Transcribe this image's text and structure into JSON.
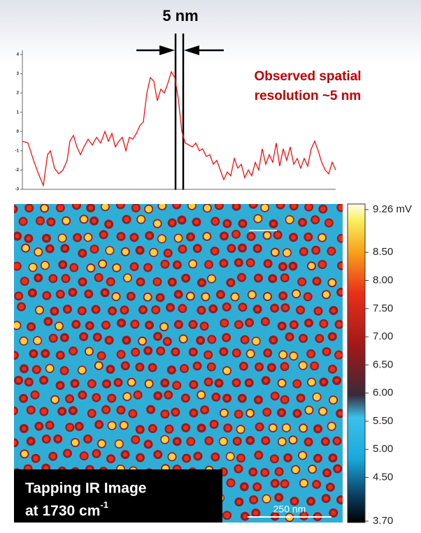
{
  "chart_data": [
    {
      "type": "line",
      "title": "5 nm",
      "annotation": "Observed spatial resolution ~5 nm",
      "color": "#ee1111",
      "x": [
        0,
        8,
        16,
        23,
        30,
        36,
        40,
        46,
        52,
        58,
        64,
        68,
        73,
        78,
        83,
        88,
        94,
        100,
        106,
        112,
        118,
        123,
        128,
        133,
        138,
        143,
        148,
        153,
        158,
        163,
        168,
        173,
        178,
        183,
        188,
        193,
        198,
        203,
        208,
        213,
        218,
        223,
        228,
        233,
        238,
        243,
        248,
        253,
        258,
        263,
        268,
        273,
        278,
        283,
        288,
        293,
        298,
        303,
        308,
        313,
        318,
        323,
        328,
        333,
        338,
        343,
        348,
        353,
        358,
        363,
        368,
        373,
        378,
        383,
        388,
        393,
        398,
        403,
        408,
        413,
        418,
        423,
        428,
        433,
        438,
        443,
        448
      ],
      "values": [
        -0.5,
        -0.6,
        -1.5,
        -2.2,
        -2.8,
        -1.2,
        -1.0,
        -1.9,
        -2.2,
        -2.0,
        -1.5,
        -0.5,
        -0.2,
        -0.8,
        -1.2,
        -0.8,
        -0.4,
        -0.7,
        -0.3,
        -0.6,
        0,
        -0.5,
        -0.1,
        -0.8,
        -0.5,
        -0.3,
        -1.0,
        -0.3,
        -0.4,
        -0.1,
        0.3,
        0.5,
        2.0,
        2.8,
        2.6,
        1.6,
        2.2,
        2.0,
        2.5,
        3.1,
        2.8,
        1.7,
        0.0,
        -0.6,
        -0.7,
        -0.8,
        -0.6,
        -1.0,
        -0.9,
        -1.3,
        -1.2,
        -1.7,
        -1.5,
        -2.0,
        -2.5,
        -2.1,
        -2.3,
        -1.4,
        -1.9,
        -1.7,
        -2.4,
        -2.0,
        -2.3,
        -1.6,
        -2.0,
        -0.9,
        -1.7,
        -1.2,
        -1.6,
        -0.6,
        -1.8,
        -0.9,
        -1.5,
        -0.8,
        -1.7,
        -1.4,
        -1.9,
        -1.4,
        -1.8,
        -0.9,
        -0.5,
        -1.0,
        -1.6,
        -2.0,
        -2.2,
        -1.6,
        -2.0
      ],
      "xlim": [
        0,
        448
      ],
      "ylim": [
        -3,
        4
      ],
      "yticks": [
        -3,
        -2,
        -1,
        0,
        1,
        2,
        3,
        4
      ]
    },
    {
      "type": "colorbar",
      "title": "Tapping IR Image",
      "subtitle": "at 1730 cm",
      "subtitle_sup": "-1",
      "scale_label": "250 nm",
      "ylim": [
        3.7,
        9.26
      ],
      "yticks": [
        {
          "value": 9.26,
          "label": "9.26 mV"
        },
        {
          "value": 8.5,
          "label": "8.50"
        },
        {
          "value": 8.0,
          "label": "8.00"
        },
        {
          "value": 7.5,
          "label": "7.50"
        },
        {
          "value": 7.0,
          "label": "7.00"
        },
        {
          "value": 6.5,
          "label": "6.50"
        },
        {
          "value": 6.0,
          "label": "6.00"
        },
        {
          "value": 5.5,
          "label": "5.50"
        },
        {
          "value": 5.0,
          "label": "5.00"
        },
        {
          "value": 4.5,
          "label": "4.50"
        },
        {
          "value": 3.7,
          "label": "3.70"
        }
      ]
    }
  ]
}
